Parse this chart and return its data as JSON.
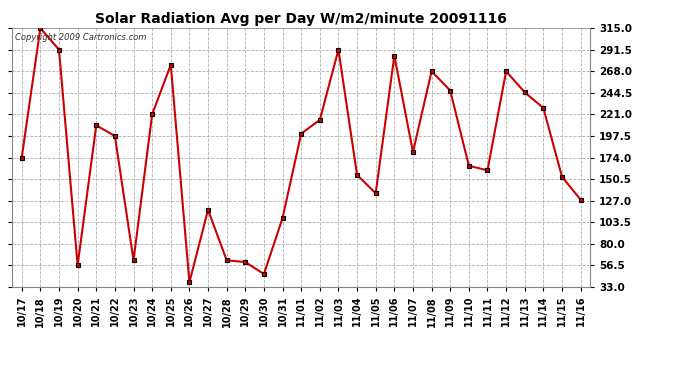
{
  "title": "Solar Radiation Avg per Day W/m2/minute 20091116",
  "copyright_text": "Copyright 2009 Cartronics.com",
  "line_color": "#cc0000",
  "marker_color": "#000000",
  "background_color": "#ffffff",
  "plot_bg_color": "#ffffff",
  "grid_color": "#b0b0b0",
  "ylim": [
    33.0,
    315.0
  ],
  "yticks": [
    33.0,
    56.5,
    80.0,
    103.5,
    127.0,
    150.5,
    174.0,
    197.5,
    221.0,
    244.5,
    268.0,
    291.5,
    315.0
  ],
  "dates": [
    "10/17",
    "10/18",
    "10/19",
    "10/20",
    "10/21",
    "10/22",
    "10/23",
    "10/24",
    "10/25",
    "10/26",
    "10/27",
    "10/28",
    "10/29",
    "10/30",
    "10/31",
    "11/01",
    "11/02",
    "11/03",
    "11/04",
    "11/05",
    "11/06",
    "11/07",
    "11/08",
    "11/09",
    "11/10",
    "11/11",
    "11/12",
    "11/13",
    "11/14",
    "11/15",
    "11/16"
  ],
  "values": [
    174.0,
    315.0,
    291.5,
    56.5,
    209.0,
    197.5,
    62.0,
    221.0,
    275.0,
    38.0,
    117.0,
    62.0,
    60.0,
    47.0,
    108.0,
    200.0,
    215.0,
    291.5,
    155.0,
    135.0,
    285.0,
    180.0,
    268.0,
    247.0,
    165.0,
    160.0,
    268.0,
    245.0,
    228.0,
    153.0,
    128.0
  ],
  "figsize": [
    6.9,
    3.75
  ],
  "dpi": 100
}
